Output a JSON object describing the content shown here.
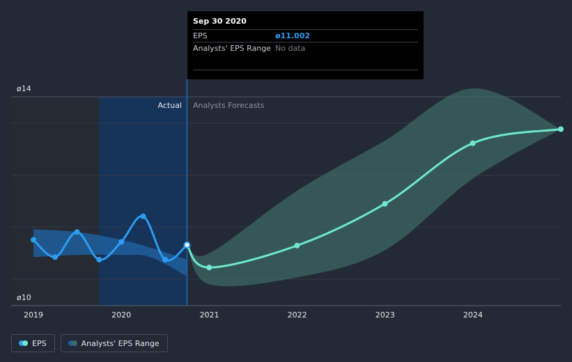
{
  "tooltip": {
    "date": "Sep 30 2020",
    "eps_label": "EPS",
    "eps_value": "ø11.002",
    "range_label": "Analysts' EPS Range",
    "range_value": "No data"
  },
  "labels": {
    "actual": "Actual",
    "forecast": "Analysts Forecasts"
  },
  "legend": {
    "eps": "EPS",
    "range": "Analysts' EPS Range"
  },
  "colors": {
    "eps_actual": "#2d9cf0",
    "eps_forecast": "#6fe8cf",
    "range_forecast": "#3f6b67",
    "range_actual": "#1e5f9d",
    "highlight": "#16335a",
    "background": "#232a36"
  },
  "chart_data": {
    "type": "line",
    "xlim": [
      "2019-01-01",
      "2024-12-31"
    ],
    "ylim": [
      10,
      14
    ],
    "y_tick_labels": [
      {
        "value": 14,
        "label": "ø14"
      },
      {
        "value": 10,
        "label": "ø10"
      }
    ],
    "x_tick_labels": [
      {
        "value": "2019-01-01",
        "label": "2019"
      },
      {
        "value": "2020-01-01",
        "label": "2020"
      },
      {
        "value": "2021-01-01",
        "label": "2021"
      },
      {
        "value": "2022-01-01",
        "label": "2022"
      },
      {
        "value": "2023-01-01",
        "label": "2023"
      },
      {
        "value": "2024-01-01",
        "label": "2024"
      }
    ],
    "actual_end": "2020-09-30",
    "eps_actual": [
      {
        "x": "2019-01-01",
        "y": 11.1
      },
      {
        "x": "2019-04-01",
        "y": 10.77
      },
      {
        "x": "2019-07-01",
        "y": 11.25
      },
      {
        "x": "2019-10-01",
        "y": 10.72
      },
      {
        "x": "2020-01-01",
        "y": 11.06
      },
      {
        "x": "2020-04-01",
        "y": 11.55
      },
      {
        "x": "2020-07-01",
        "y": 10.72
      },
      {
        "x": "2020-09-30",
        "y": 11.002
      }
    ],
    "range_actual": {
      "x": [
        "2019-01-01",
        "2019-07-01",
        "2020-01-01",
        "2020-05-01",
        "2020-09-30"
      ],
      "high": [
        11.3,
        11.25,
        11.1,
        10.95,
        10.72
      ],
      "low": [
        10.77,
        10.81,
        10.81,
        10.77,
        10.4
      ]
    },
    "eps_forecast": [
      {
        "x": "2020-09-30",
        "y": 11.002
      },
      {
        "x": "2020-12-31",
        "y": 10.57
      },
      {
        "x": "2021-12-31",
        "y": 10.99
      },
      {
        "x": "2022-12-31",
        "y": 11.79
      },
      {
        "x": "2023-12-31",
        "y": 12.95
      },
      {
        "x": "2024-12-31",
        "y": 13.22
      }
    ],
    "range_forecast": {
      "x": [
        "2020-09-30",
        "2020-12-31",
        "2021-12-31",
        "2022-12-31",
        "2023-12-31",
        "2024-12-31"
      ],
      "high": [
        11.002,
        10.84,
        12.04,
        13.0,
        14.0,
        13.22
      ],
      "low": [
        11.002,
        10.25,
        10.38,
        10.9,
        12.27,
        13.22
      ]
    },
    "grid": true
  }
}
